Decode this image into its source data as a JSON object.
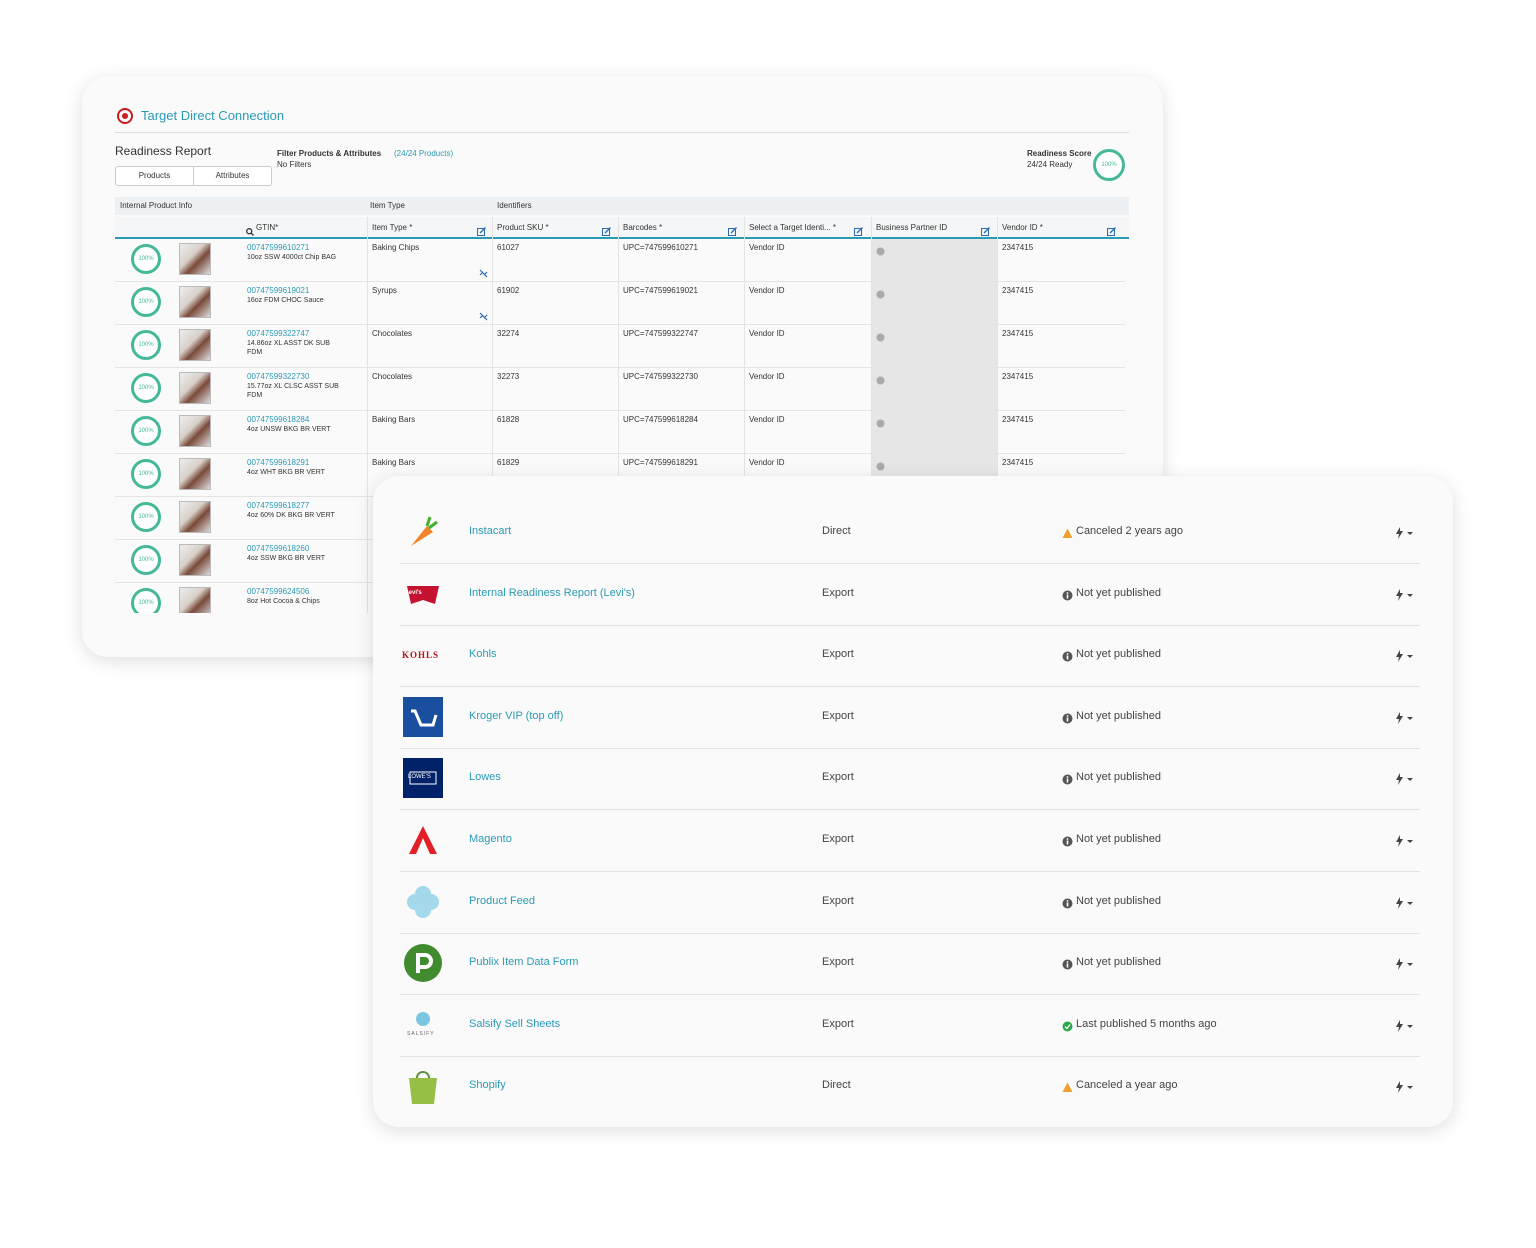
{
  "back_panel": {
    "title": "Target Direct Connection",
    "report_title": "Readiness Report",
    "tabs": [
      "Products",
      "Attributes"
    ],
    "filter_label": "Filter Products & Attributes",
    "filter_count": "(24/24 Products)",
    "filter_status": "No Filters",
    "score_label": "Readiness Score",
    "score_ready": "24/24 Ready",
    "score_value": "100%",
    "group_headers": [
      "Internal Product Info",
      "Item Type",
      "Identifiers"
    ],
    "columns": [
      "GTIN*",
      "Item Type *",
      "Product SKU *",
      "Barcodes *",
      "Select a Target Identi... *",
      "Business Partner ID",
      "Vendor ID *"
    ],
    "rows": [
      {
        "score": "100%",
        "gtin": "00747599610271",
        "description": "10oz SSW 4000ct Chip BAG",
        "item_type": "Baking Chips",
        "sku": "61027",
        "barcode": "UPC=747599610271",
        "identifier": "Vendor ID",
        "vendor_id": "2347415"
      },
      {
        "score": "100%",
        "gtin": "00747599619021",
        "description": "16oz FDM CHOC Sauce",
        "item_type": "Syrups",
        "sku": "61902",
        "barcode": "UPC=747599619021",
        "identifier": "Vendor ID",
        "vendor_id": "2347415"
      },
      {
        "score": "100%",
        "gtin": "00747599322747",
        "description": "14.86oz XL ASST DK SUB FDM",
        "item_type": "Chocolates",
        "sku": "32274",
        "barcode": "UPC=747599322747",
        "identifier": "Vendor ID",
        "vendor_id": "2347415"
      },
      {
        "score": "100%",
        "gtin": "00747599322730",
        "description": "15.77oz XL CLSC ASST SUB FDM",
        "item_type": "Chocolates",
        "sku": "32273",
        "barcode": "UPC=747599322730",
        "identifier": "Vendor ID",
        "vendor_id": "2347415"
      },
      {
        "score": "100%",
        "gtin": "00747599618284",
        "description": "4oz UNSW BKG BR VERT",
        "item_type": "Baking Bars",
        "sku": "61828",
        "barcode": "UPC=747599618284",
        "identifier": "Vendor ID",
        "vendor_id": "2347415"
      },
      {
        "score": "100%",
        "gtin": "00747599618291",
        "description": "4oz WHT BKG BR VERT",
        "item_type": "Baking Bars",
        "sku": "61829",
        "barcode": "UPC=747599618291",
        "identifier": "Vendor ID",
        "vendor_id": "2347415"
      },
      {
        "score": "100%",
        "gtin": "00747599618277",
        "description": "4oz 60% DK BKG BR VERT"
      },
      {
        "score": "100%",
        "gtin": "00747599618260",
        "description": "4oz SSW BKG BR VERT"
      },
      {
        "score": "100%",
        "gtin": "00747599624506",
        "description": "8oz Hot Cocoa & Chips"
      }
    ]
  },
  "front_panel": {
    "rows": [
      {
        "name": "Instacart",
        "type": "Direct",
        "status": "Canceled 2 years ago",
        "status_kind": "warning"
      },
      {
        "name": "Internal Readiness Report (Levi's)",
        "type": "Export",
        "status": "Not yet published",
        "status_kind": "info",
        "logo_text": "Levi's"
      },
      {
        "name": "Kohls",
        "type": "Export",
        "status": "Not yet published",
        "status_kind": "info",
        "logo_text": "KOHLS"
      },
      {
        "name": "Kroger VIP (top off)",
        "type": "Export",
        "status": "Not yet published",
        "status_kind": "info"
      },
      {
        "name": "Lowes",
        "type": "Export",
        "status": "Not yet published",
        "status_kind": "info",
        "logo_text": "LOWE'S"
      },
      {
        "name": "Magento",
        "type": "Export",
        "status": "Not yet published",
        "status_kind": "info"
      },
      {
        "name": "Product Feed",
        "type": "Export",
        "status": "Not yet published",
        "status_kind": "info"
      },
      {
        "name": "Publix Item Data Form",
        "type": "Export",
        "status": "Not yet published",
        "status_kind": "info"
      },
      {
        "name": "Salsify Sell Sheets",
        "type": "Export",
        "status": "Last published 5 months ago",
        "status_kind": "success",
        "logo_text": "SALSIFY"
      },
      {
        "name": "Shopify",
        "type": "Direct",
        "status": "Canceled a year ago",
        "status_kind": "warning"
      }
    ]
  }
}
